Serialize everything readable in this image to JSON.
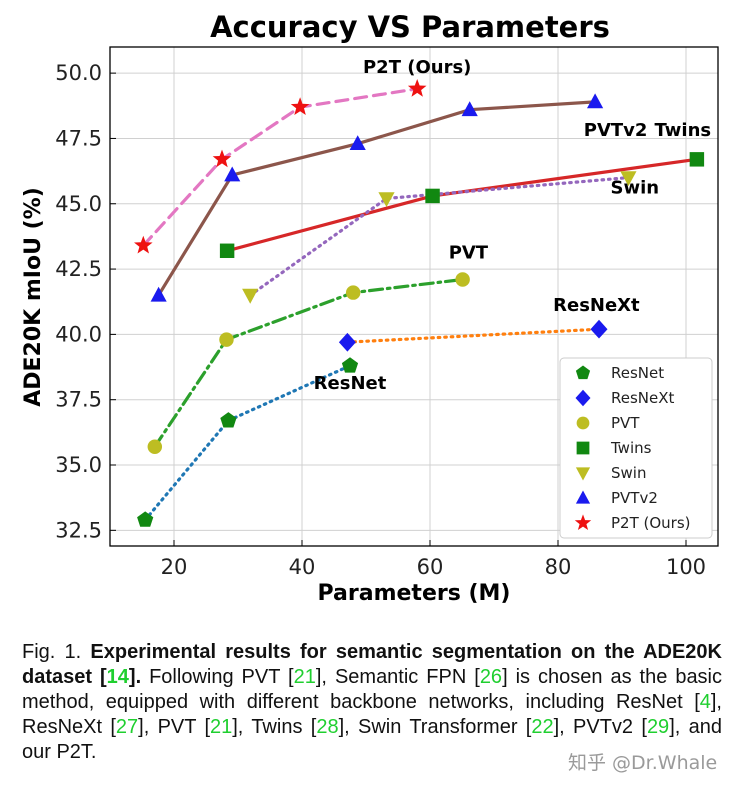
{
  "chart_data": {
    "type": "line",
    "title": "Accuracy VS Parameters",
    "xlabel": "Parameters (M)",
    "ylabel": "ADE20K mIoU (%)",
    "xlim": [
      10,
      105
    ],
    "ylim": [
      31.9,
      51.0
    ],
    "xticks": [
      20,
      40,
      60,
      80,
      100
    ],
    "yticks": [
      32.5,
      35.0,
      37.5,
      40.0,
      42.5,
      45.0,
      47.5,
      50.0
    ],
    "xtick_labels": [
      "20",
      "40",
      "60",
      "80",
      "100"
    ],
    "ytick_labels": [
      "32.5",
      "35.0",
      "37.5",
      "40.0",
      "42.5",
      "45.0",
      "47.5",
      "50.0"
    ],
    "grid": true,
    "legend_position": "lower-right",
    "series": [
      {
        "name": "ResNet",
        "color": "#1f77b4",
        "line": "dotted",
        "marker": "pentagon",
        "marker_color": "#118811",
        "x": [
          15.5,
          28.5,
          47.5
        ],
        "y": [
          32.9,
          36.7,
          38.8
        ]
      },
      {
        "name": "ResNeXt",
        "color": "#ff7f0e",
        "line": "dotted",
        "marker": "diamond",
        "marker_color": "#1a1aee",
        "x": [
          47.1,
          86.4
        ],
        "y": [
          39.7,
          40.2
        ]
      },
      {
        "name": "PVT",
        "color": "#2ca02c",
        "line": "dashdot",
        "marker": "circle",
        "marker_color": "#bdbd22",
        "x": [
          17.0,
          28.2,
          48.0,
          65.1
        ],
        "y": [
          35.7,
          39.8,
          41.6,
          42.1
        ]
      },
      {
        "name": "Twins",
        "color": "#d62728",
        "line": "solid",
        "marker": "square",
        "marker_color": "#118811",
        "x": [
          28.3,
          60.4,
          101.7
        ],
        "y": [
          43.2,
          45.3,
          46.7
        ]
      },
      {
        "name": "Swin",
        "color": "#9467bd",
        "line": "dotted",
        "marker": "triangle-down",
        "marker_color": "#bdbd22",
        "x": [
          31.9,
          53.2,
          91.0
        ],
        "y": [
          41.5,
          45.2,
          46.0
        ]
      },
      {
        "name": "PVTv2",
        "color": "#8c564b",
        "line": "solid",
        "marker": "triangle-up",
        "marker_color": "#1a1aee",
        "x": [
          17.6,
          29.1,
          48.7,
          66.2,
          85.8
        ],
        "y": [
          41.5,
          46.1,
          47.3,
          48.6,
          48.9
        ]
      },
      {
        "name": "P2T (Ours)",
        "color": "#e377c2",
        "line": "dashed",
        "marker": "star",
        "marker_color": "#ee1111",
        "x": [
          15.2,
          27.5,
          39.7,
          58.0
        ],
        "y": [
          43.4,
          46.7,
          48.7,
          49.4
        ]
      }
    ],
    "annotations": [
      {
        "text": "P2T (Ours)",
        "x": 58.0,
        "y": 50.0
      },
      {
        "text": "PVTv2",
        "x": 89.0,
        "y": 47.6
      },
      {
        "text": "Twins",
        "x": 99.5,
        "y": 47.6
      },
      {
        "text": "Swin",
        "x": 92.0,
        "y": 45.4
      },
      {
        "text": "PVT",
        "x": 66.0,
        "y": 42.9
      },
      {
        "text": "ResNeXt",
        "x": 86.0,
        "y": 40.9
      },
      {
        "text": "ResNet",
        "x": 47.5,
        "y": 37.9
      }
    ]
  },
  "caption": {
    "fig_label": "Fig. 1. ",
    "bold_text": "Experimental results for semantic segmentation on the ADE20K dataset [",
    "bold_ref": "14",
    "bold_end": "].",
    "t1": " Following PVT [",
    "r1": "21",
    "t2": "], Semantic FPN [",
    "r2": "26",
    "t3": "] is chosen as the basic method, equipped with different backbone networks, including ResNet [",
    "r3": "4",
    "t4": "], ResNeXt [",
    "r4": "27",
    "t5": "], PVT [",
    "r5": "21",
    "t6": "], Twins [",
    "r6": "28",
    "t7": "], Swin Transformer [",
    "r7": "22",
    "t8": "], PVTv2 [",
    "r8": "29",
    "t9": "], and our P2T."
  },
  "watermark": "知乎 @Dr.Whale"
}
